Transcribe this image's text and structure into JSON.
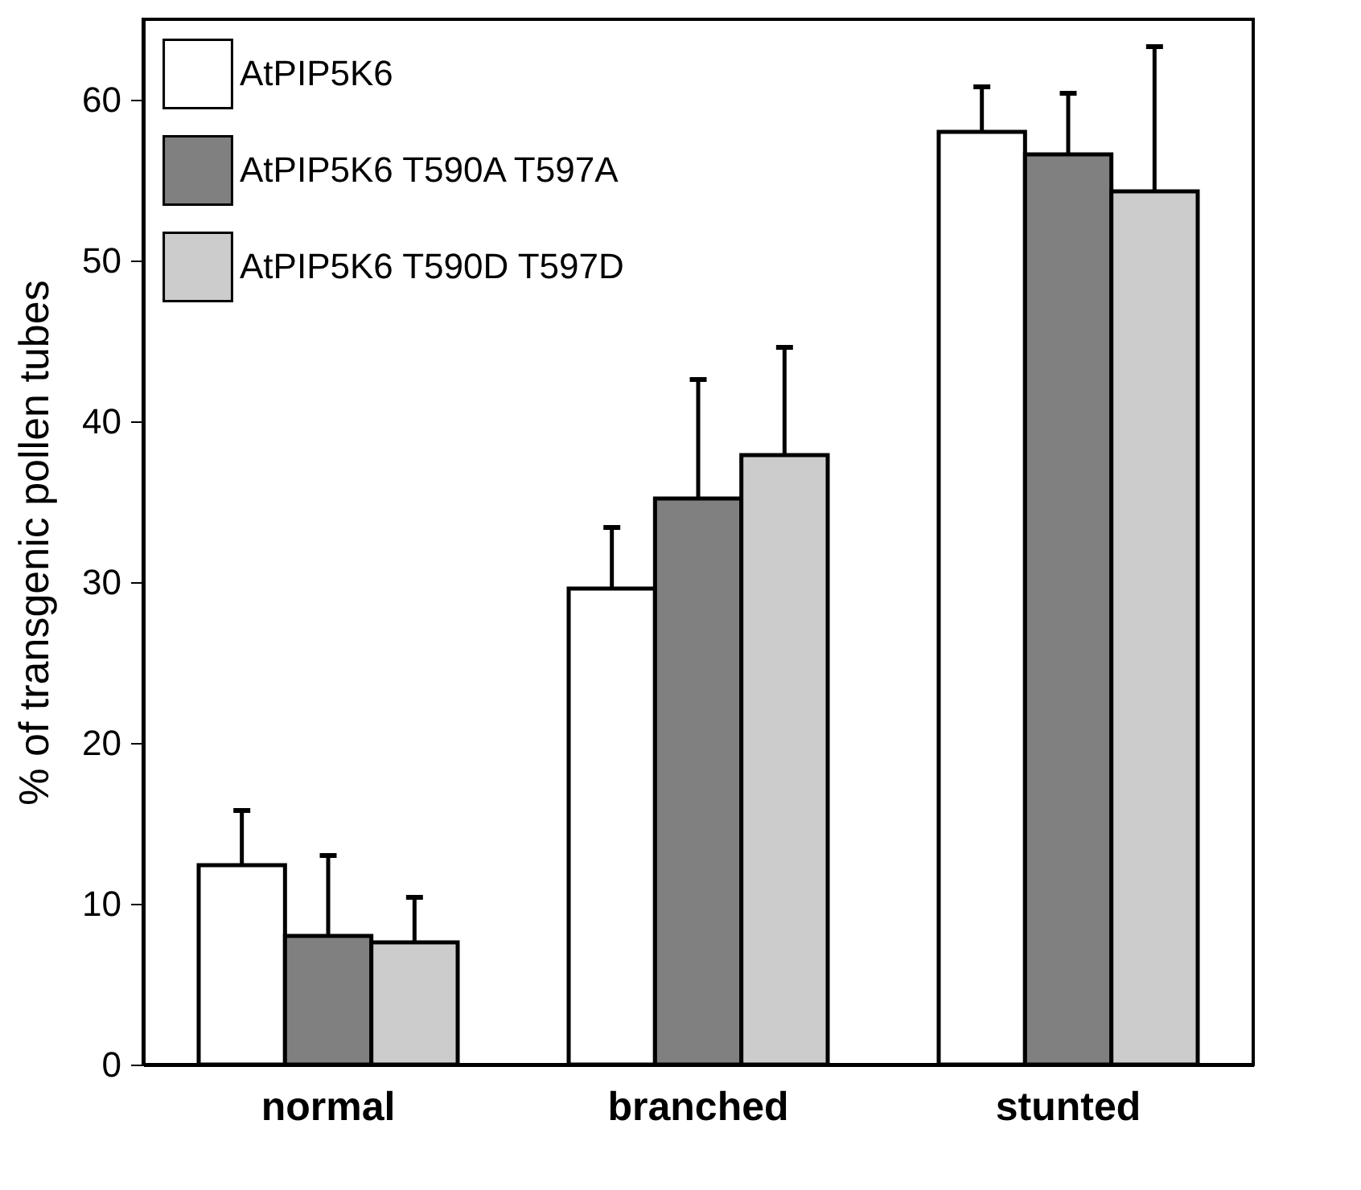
{
  "chart_data": {
    "type": "bar",
    "ylabel": "% of transgenic pollen tubes",
    "categories": [
      "normal",
      "branched",
      "stunted"
    ],
    "series": [
      {
        "name": "AtPIP5K6",
        "color": "#ffffff",
        "values": [
          12.4,
          29.6,
          58.0
        ],
        "errors": [
          3.4,
          3.8,
          2.8
        ]
      },
      {
        "name": "AtPIP5K6 T590A T597A",
        "color": "#808080",
        "values": [
          8.0,
          35.2,
          56.6
        ],
        "errors": [
          5.0,
          7.4,
          3.8
        ]
      },
      {
        "name": "AtPIP5K6 T590D T597D",
        "color": "#cccccc",
        "values": [
          7.6,
          37.9,
          54.3
        ],
        "errors": [
          2.8,
          6.7,
          9.0
        ]
      }
    ],
    "ylim": [
      0,
      65
    ],
    "yticks": [
      0,
      10,
      20,
      30,
      40,
      50,
      60
    ],
    "grid": false,
    "legend": "top left"
  }
}
